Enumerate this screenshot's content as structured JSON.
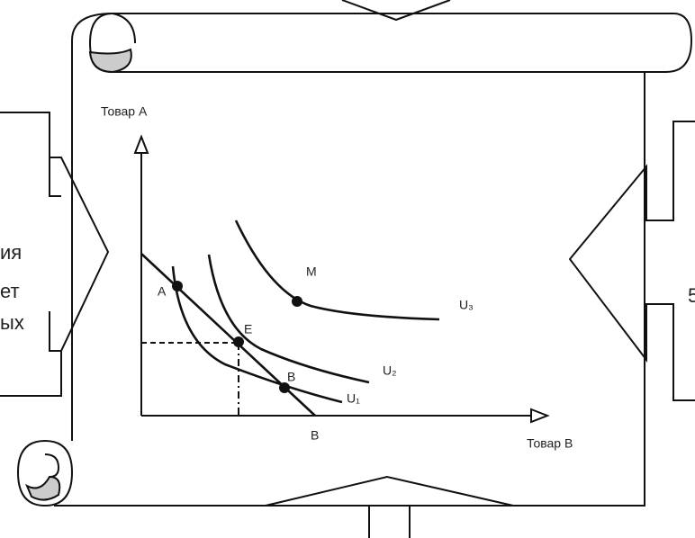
{
  "left_text": [
    "ия",
    "ет",
    "ых"
  ],
  "right_text": "5",
  "diagram": {
    "y_axis": "Товар А",
    "x_axis": "Товар В",
    "x_intercept": "B",
    "points": [
      "A",
      "E",
      "B",
      "M"
    ],
    "curves": [
      "U₁",
      "U₂",
      "U₃"
    ]
  }
}
